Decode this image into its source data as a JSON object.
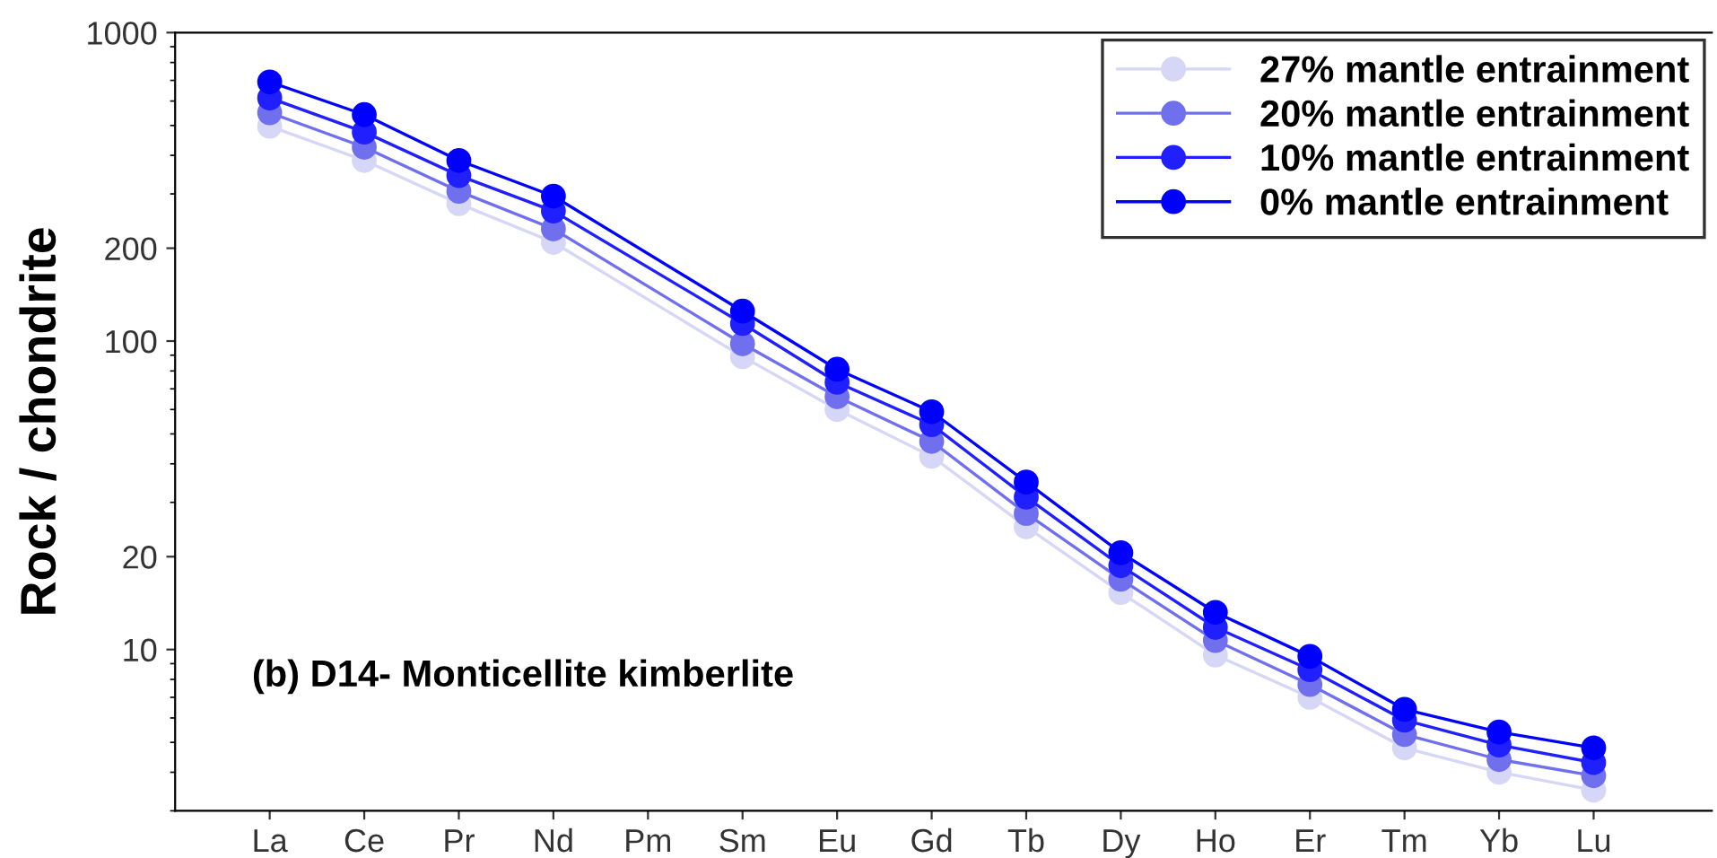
{
  "chart_data": {
    "type": "line",
    "ylabel": "Rock / chondrite",
    "log": "y",
    "ylim": [
      3,
      1000
    ],
    "yticks": [
      10,
      20,
      100,
      200,
      1000
    ],
    "marker": "circle",
    "line_style": "solid",
    "legend": "top right",
    "grid": false,
    "categories": [
      "La",
      "Ce",
      "Pr",
      "Nd",
      "Pm",
      "Sm",
      "Eu",
      "Gd",
      "Tb",
      "Dy",
      "Ho",
      "Er",
      "Tm",
      "Yb",
      "Lu"
    ],
    "annotations": [
      {
        "text": "(b) D14- Monticellite kimberlite"
      }
    ],
    "series": [
      {
        "name": "27% mantle entrainment",
        "color": "#d6d6f6",
        "values": [
          497,
          385,
          279,
          209,
          null,
          89,
          60,
          42.3,
          25,
          15.3,
          9.6,
          7.0,
          4.8,
          4.0,
          3.5
        ]
      },
      {
        "name": "20% mantle entrainment",
        "color": "#7070ee",
        "values": [
          550,
          425,
          306,
          231,
          null,
          98,
          66,
          47.3,
          27.6,
          16.9,
          10.7,
          7.7,
          5.3,
          4.4,
          3.9
        ]
      },
      {
        "name": "10% mantle entrainment",
        "color": "#2020ff",
        "values": [
          614,
          476,
          344,
          264,
          null,
          114,
          73.5,
          53.6,
          31.2,
          18.7,
          11.8,
          8.6,
          5.9,
          4.9,
          4.3
        ]
      },
      {
        "name": "0% mantle entrainment",
        "color": "#0000ff",
        "values": [
          692,
          542,
          385,
          295,
          null,
          125,
          81,
          59,
          34.9,
          20.6,
          13.2,
          9.5,
          6.4,
          5.4,
          4.8
        ]
      }
    ]
  }
}
